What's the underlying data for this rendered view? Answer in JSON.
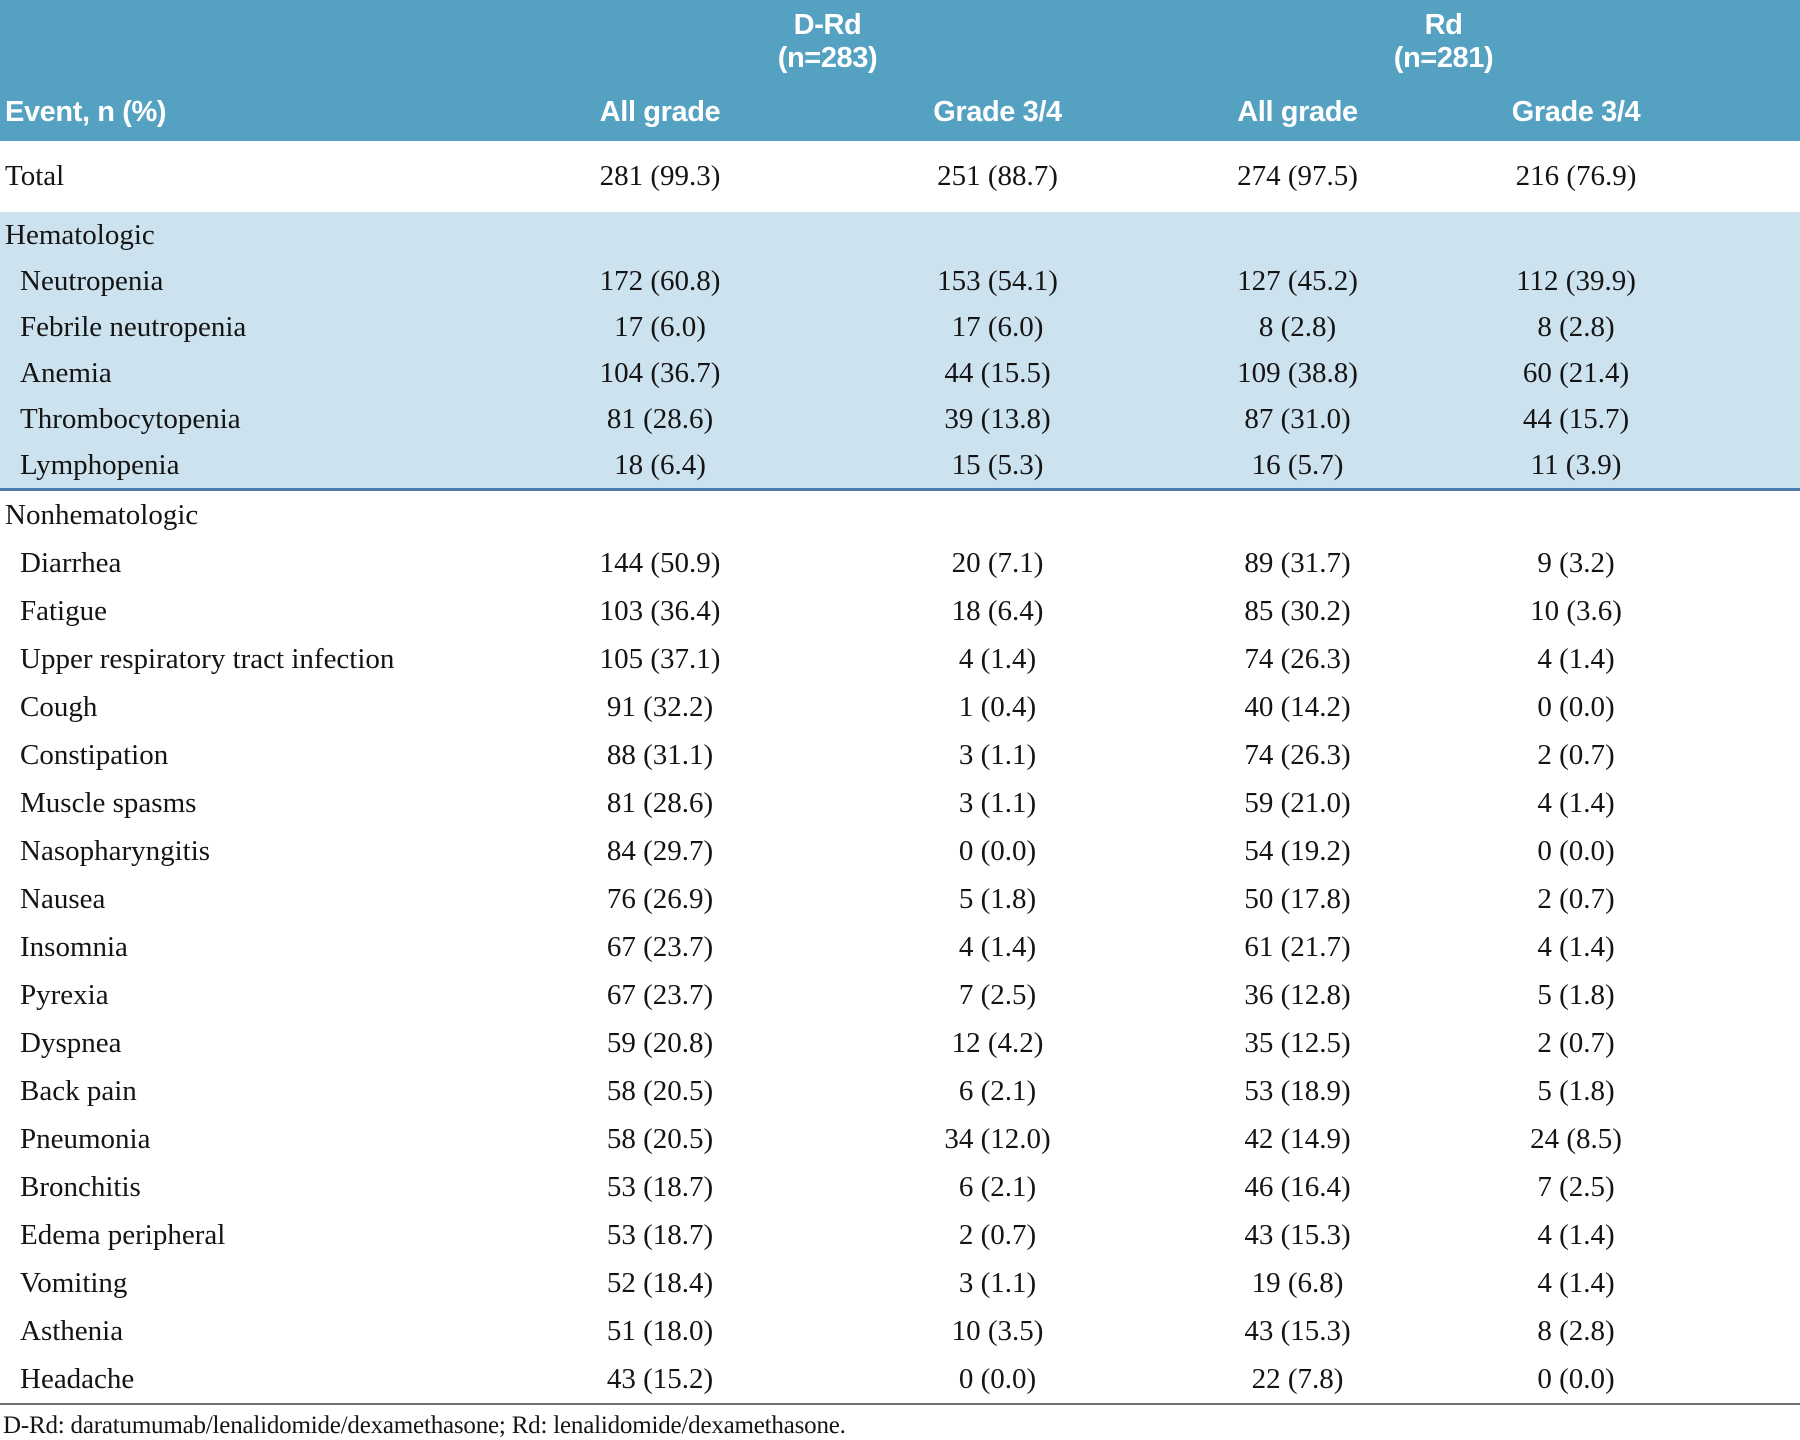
{
  "header": {
    "event_col": "Event, n (%)",
    "groups": [
      {
        "name": "D-Rd",
        "n": "(n=283)",
        "sub": [
          "All grade",
          "Grade 3/4"
        ]
      },
      {
        "name": "Rd",
        "n": "(n=281)",
        "sub": [
          "All grade",
          "Grade 3/4"
        ]
      }
    ]
  },
  "rows": [
    {
      "label": "Total",
      "type": "total",
      "shaded": false,
      "values": [
        "281 (99.3)",
        "251 (88.7)",
        "274 (97.5)",
        "216 (76.9)"
      ]
    },
    {
      "label": "Hematologic",
      "type": "section",
      "shaded": true,
      "values": []
    },
    {
      "label": "Neutropenia",
      "type": "item",
      "shaded": true,
      "values": [
        "172 (60.8)",
        "153 (54.1)",
        "127 (45.2)",
        "112 (39.9)"
      ]
    },
    {
      "label": "Febrile neutropenia",
      "type": "item",
      "shaded": true,
      "values": [
        "17 (6.0)",
        "17 (6.0)",
        "8 (2.8)",
        "8 (2.8)"
      ]
    },
    {
      "label": "Anemia",
      "type": "item",
      "shaded": true,
      "values": [
        "104 (36.7)",
        "44 (15.5)",
        "109 (38.8)",
        "60 (21.4)"
      ]
    },
    {
      "label": "Thrombocytopenia",
      "type": "item",
      "shaded": true,
      "values": [
        "81 (28.6)",
        "39 (13.8)",
        "87 (31.0)",
        "44 (15.7)"
      ]
    },
    {
      "label": "Lymphopenia",
      "type": "item",
      "shaded": true,
      "values": [
        "18 (6.4)",
        "15 (5.3)",
        "16 (5.7)",
        "11 (3.9)"
      ]
    },
    {
      "label": "Nonhematologic",
      "type": "section",
      "shaded": false,
      "values": []
    },
    {
      "label": "Diarrhea",
      "type": "item",
      "shaded": false,
      "values": [
        "144 (50.9)",
        "20 (7.1)",
        "89 (31.7)",
        "9 (3.2)"
      ]
    },
    {
      "label": "Fatigue",
      "type": "item",
      "shaded": false,
      "values": [
        "103 (36.4)",
        "18 (6.4)",
        "85 (30.2)",
        "10 (3.6)"
      ]
    },
    {
      "label": "Upper respiratory tract infection",
      "type": "item",
      "shaded": false,
      "values": [
        "105 (37.1)",
        "4 (1.4)",
        "74 (26.3)",
        "4 (1.4)"
      ]
    },
    {
      "label": "Cough",
      "type": "item",
      "shaded": false,
      "values": [
        "91 (32.2)",
        "1 (0.4)",
        "40 (14.2)",
        "0 (0.0)"
      ]
    },
    {
      "label": "Constipation",
      "type": "item",
      "shaded": false,
      "values": [
        "88 (31.1)",
        "3 (1.1)",
        "74 (26.3)",
        "2 (0.7)"
      ]
    },
    {
      "label": "Muscle spasms",
      "type": "item",
      "shaded": false,
      "values": [
        "81 (28.6)",
        "3 (1.1)",
        "59 (21.0)",
        "4 (1.4)"
      ]
    },
    {
      "label": "Nasopharyngitis",
      "type": "item",
      "shaded": false,
      "values": [
        "84 (29.7)",
        "0 (0.0)",
        "54 (19.2)",
        "0 (0.0)"
      ]
    },
    {
      "label": "Nausea",
      "type": "item",
      "shaded": false,
      "values": [
        "76 (26.9)",
        "5 (1.8)",
        "50 (17.8)",
        "2 (0.7)"
      ]
    },
    {
      "label": "Insomnia",
      "type": "item",
      "shaded": false,
      "values": [
        "67 (23.7)",
        "4 (1.4)",
        "61 (21.7)",
        "4 (1.4)"
      ]
    },
    {
      "label": "Pyrexia",
      "type": "item",
      "shaded": false,
      "values": [
        "67 (23.7)",
        "7 (2.5)",
        "36 (12.8)",
        "5 (1.8)"
      ]
    },
    {
      "label": "Dyspnea",
      "type": "item",
      "shaded": false,
      "values": [
        "59 (20.8)",
        "12 (4.2)",
        "35 (12.5)",
        "2 (0.7)"
      ]
    },
    {
      "label": "Back pain",
      "type": "item",
      "shaded": false,
      "values": [
        "58 (20.5)",
        "6 (2.1)",
        "53 (18.9)",
        "5 (1.8)"
      ]
    },
    {
      "label": "Pneumonia",
      "type": "item",
      "shaded": false,
      "values": [
        "58 (20.5)",
        "34 (12.0)",
        "42 (14.9)",
        "24 (8.5)"
      ]
    },
    {
      "label": "Bronchitis",
      "type": "item",
      "shaded": false,
      "values": [
        "53 (18.7)",
        "6 (2.1)",
        "46 (16.4)",
        "7 (2.5)"
      ]
    },
    {
      "label": "Edema peripheral",
      "type": "item",
      "shaded": false,
      "values": [
        "53 (18.7)",
        "2 (0.7)",
        "43 (15.3)",
        "4 (1.4)"
      ]
    },
    {
      "label": "Vomiting",
      "type": "item",
      "shaded": false,
      "values": [
        "52 (18.4)",
        "3 (1.1)",
        "19 (6.8)",
        "4 (1.4)"
      ]
    },
    {
      "label": "Asthenia",
      "type": "item",
      "shaded": false,
      "values": [
        "51 (18.0)",
        "10 (3.5)",
        "43 (15.3)",
        "8 (2.8)"
      ]
    },
    {
      "label": "Headache",
      "type": "item",
      "shaded": false,
      "values": [
        "43 (15.2)",
        "0 (0.0)",
        "22 (7.8)",
        "0 (0.0)"
      ]
    }
  ],
  "footnote": "D-Rd: daratumumab/lenalidomide/dexamethasone; Rd: lenalidomide/dexamethasone.",
  "colors": {
    "header_bg": "#54a1c2",
    "shaded_band_bg": "#cde2ef",
    "section_divider": "#4a7cae",
    "footer_rule": "#6f6f6f"
  }
}
